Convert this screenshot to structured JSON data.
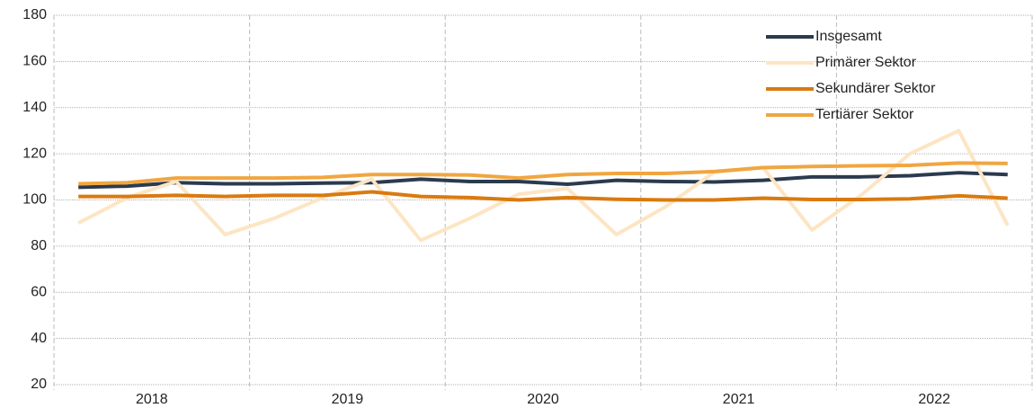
{
  "chart_data": {
    "type": "line",
    "year_labels": [
      "2018",
      "2019",
      "2020",
      "2021",
      "2022"
    ],
    "points_per_year": 4,
    "ylim": [
      20,
      180
    ],
    "yticks": [
      20,
      40,
      60,
      80,
      100,
      120,
      140,
      160,
      180
    ],
    "grid": true,
    "legend": "upper right",
    "series": [
      {
        "name": "Insgesamt",
        "color": "#2b3a4e",
        "values": [
          105.5,
          106,
          107.5,
          107,
          107,
          107.3,
          107.5,
          109,
          108,
          108,
          106.8,
          108.5,
          108,
          107.8,
          108.5,
          110,
          110,
          110.5,
          111.8,
          111
        ]
      },
      {
        "name": "Primärer Sektor",
        "color": "#fde5c4",
        "values": [
          90,
          101,
          108,
          85,
          92,
          101,
          109,
          82.5,
          92,
          102.5,
          105,
          85,
          97,
          112,
          114,
          87,
          102,
          120,
          130,
          89
        ]
      },
      {
        "name": "Sekundärer Sektor",
        "color": "#d97a10",
        "values": [
          101.5,
          101.5,
          102,
          101.5,
          102,
          102,
          103.5,
          101.5,
          101,
          100,
          101,
          100.3,
          100,
          100,
          100.8,
          100.2,
          100.2,
          100.5,
          101.8,
          100.8
        ]
      },
      {
        "name": "Tertiärer Sektor",
        "color": "#f0a640",
        "values": [
          107,
          107.5,
          109.5,
          109.5,
          109.5,
          109.8,
          111,
          111,
          110.8,
          109.5,
          111,
          111.5,
          111.5,
          112.3,
          114,
          114.5,
          114.8,
          115,
          116,
          115.8
        ]
      }
    ]
  }
}
